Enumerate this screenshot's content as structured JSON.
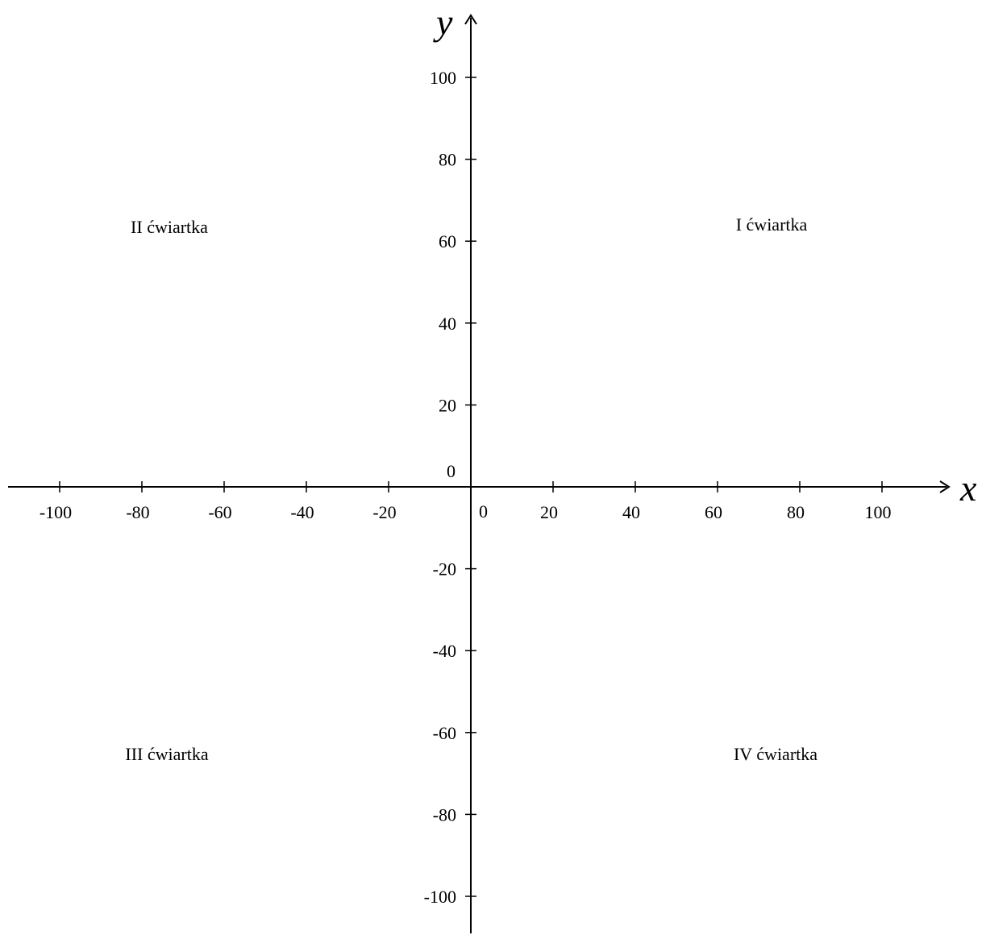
{
  "diagram": {
    "x_axis": {
      "name": "x",
      "tick_values": [
        -100,
        -80,
        -60,
        -40,
        -20,
        20,
        40,
        60,
        80,
        100
      ],
      "tick_labels": [
        "-100",
        "-80",
        "-60",
        "-40",
        "-20",
        "20",
        "40",
        "60",
        "80",
        "100"
      ],
      "origin_label": "0"
    },
    "y_axis": {
      "name": "y",
      "tick_values": [
        100,
        80,
        60,
        40,
        20,
        -20,
        -40,
        -60,
        -80,
        -100
      ],
      "tick_labels": [
        "100",
        "80",
        "60",
        "40",
        "20",
        "-20",
        "-40",
        "-60",
        "-80",
        "-100"
      ],
      "origin_label": "0"
    },
    "quadrants": {
      "q1": "I ćwiartka",
      "q2": "II ćwiartka",
      "q3": "III ćwiartka",
      "q4": "IV ćwiartka"
    },
    "line_color": "#000000"
  }
}
